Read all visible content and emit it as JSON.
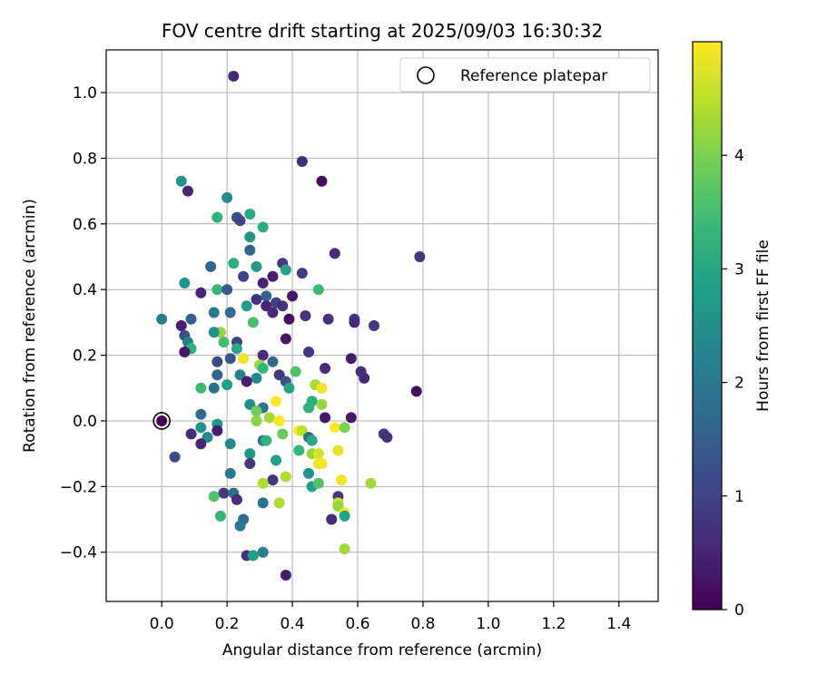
{
  "chart_data": {
    "type": "scatter",
    "title": "FOV centre drift starting at 2025/09/03 16:30:32",
    "xlabel": "Angular distance from reference (arcmin)",
    "ylabel": "Rotation from reference (arcmin)",
    "xlim": [
      -0.17,
      1.52
    ],
    "ylim": [
      -0.55,
      1.13
    ],
    "grid": true,
    "xticks": [
      0.0,
      0.2,
      0.4,
      0.6,
      0.8,
      1.0,
      1.2,
      1.4
    ],
    "xtick_labels": [
      "0.0",
      "0.2",
      "0.4",
      "0.6",
      "0.8",
      "1.0",
      "1.2",
      "1.4"
    ],
    "yticks": [
      -0.4,
      -0.2,
      0.0,
      0.2,
      0.4,
      0.6,
      0.8,
      1.0
    ],
    "ytick_labels": [
      "−0.4",
      "−0.2",
      "0.0",
      "0.2",
      "0.4",
      "0.6",
      "0.8",
      "1.0"
    ],
    "legend": {
      "position": "top-right",
      "entries": [
        "Reference platepar"
      ]
    },
    "reference_point": {
      "x": 0.0,
      "y": 0.0
    },
    "colorbar": {
      "label": "Hours from first FF file",
      "range": [
        0,
        5
      ],
      "ticks": [
        0,
        1,
        2,
        3,
        4
      ],
      "tick_labels": [
        "0",
        "1",
        "2",
        "3",
        "4"
      ],
      "colormap": [
        "#440154",
        "#482878",
        "#3e4989",
        "#31688e",
        "#26828e",
        "#1f9e89",
        "#35b779",
        "#6ece58",
        "#b5de2b",
        "#fde725"
      ]
    },
    "points": [
      {
        "x": 0.22,
        "y": 1.05,
        "h": 0.6
      },
      {
        "x": 0.43,
        "y": 0.79,
        "h": 0.7
      },
      {
        "x": 0.49,
        "y": 0.73,
        "h": 0.1
      },
      {
        "x": 0.06,
        "y": 0.73,
        "h": 2.6
      },
      {
        "x": 0.08,
        "y": 0.7,
        "h": 0.5
      },
      {
        "x": 0.2,
        "y": 0.68,
        "h": 2.4
      },
      {
        "x": 0.27,
        "y": 0.63,
        "h": 3.0
      },
      {
        "x": 0.23,
        "y": 0.62,
        "h": 1.2
      },
      {
        "x": 0.17,
        "y": 0.62,
        "h": 3.2
      },
      {
        "x": 0.31,
        "y": 0.59,
        "h": 3.1
      },
      {
        "x": 0.24,
        "y": 0.61,
        "h": 1.0
      },
      {
        "x": 0.27,
        "y": 0.56,
        "h": 2.6
      },
      {
        "x": 0.27,
        "y": 0.52,
        "h": 1.6
      },
      {
        "x": 0.53,
        "y": 0.51,
        "h": 0.6
      },
      {
        "x": 0.79,
        "y": 0.5,
        "h": 0.8
      },
      {
        "x": 0.37,
        "y": 0.48,
        "h": 0.8
      },
      {
        "x": 0.15,
        "y": 0.47,
        "h": 1.6
      },
      {
        "x": 0.22,
        "y": 0.48,
        "h": 3.2
      },
      {
        "x": 0.29,
        "y": 0.47,
        "h": 2.7
      },
      {
        "x": 0.38,
        "y": 0.46,
        "h": 2.9
      },
      {
        "x": 0.43,
        "y": 0.45,
        "h": 0.9
      },
      {
        "x": 0.25,
        "y": 0.44,
        "h": 1.0
      },
      {
        "x": 0.34,
        "y": 0.44,
        "h": 0.4
      },
      {
        "x": 0.07,
        "y": 0.42,
        "h": 2.6
      },
      {
        "x": 0.17,
        "y": 0.4,
        "h": 3.3
      },
      {
        "x": 0.2,
        "y": 0.4,
        "h": 1.4
      },
      {
        "x": 0.31,
        "y": 0.42,
        "h": 0.5
      },
      {
        "x": 0.48,
        "y": 0.4,
        "h": 3.4
      },
      {
        "x": 0.12,
        "y": 0.39,
        "h": 0.5
      },
      {
        "x": 0.4,
        "y": 0.38,
        "h": 0.3
      },
      {
        "x": 0.29,
        "y": 0.37,
        "h": 0.7
      },
      {
        "x": 0.32,
        "y": 0.38,
        "h": 1.5
      },
      {
        "x": 0.35,
        "y": 0.36,
        "h": 1.0
      },
      {
        "x": 0.32,
        "y": 0.35,
        "h": 0.5
      },
      {
        "x": 0.26,
        "y": 0.35,
        "h": 2.7
      },
      {
        "x": 0.34,
        "y": 0.33,
        "h": 0.6
      },
      {
        "x": 0.37,
        "y": 0.35,
        "h": 0.7
      },
      {
        "x": 0.16,
        "y": 0.33,
        "h": 2.0
      },
      {
        "x": 0.21,
        "y": 0.33,
        "h": 1.7
      },
      {
        "x": 0.0,
        "y": 0.31,
        "h": 2.2
      },
      {
        "x": 0.09,
        "y": 0.31,
        "h": 1.5
      },
      {
        "x": 0.44,
        "y": 0.32,
        "h": 0.7
      },
      {
        "x": 0.51,
        "y": 0.31,
        "h": 0.7
      },
      {
        "x": 0.59,
        "y": 0.31,
        "h": 0.9
      },
      {
        "x": 0.59,
        "y": 0.3,
        "h": 0.6
      },
      {
        "x": 0.28,
        "y": 0.3,
        "h": 3.5
      },
      {
        "x": 0.39,
        "y": 0.31,
        "h": 0.2
      },
      {
        "x": 0.65,
        "y": 0.29,
        "h": 0.8
      },
      {
        "x": 0.06,
        "y": 0.29,
        "h": 0.4
      },
      {
        "x": 0.18,
        "y": 0.27,
        "h": 4.2
      },
      {
        "x": 0.16,
        "y": 0.27,
        "h": 2.5
      },
      {
        "x": 0.07,
        "y": 0.26,
        "h": 1.2
      },
      {
        "x": 0.08,
        "y": 0.24,
        "h": 2.2
      },
      {
        "x": 0.19,
        "y": 0.24,
        "h": 3.5
      },
      {
        "x": 0.23,
        "y": 0.24,
        "h": 1.0
      },
      {
        "x": 0.38,
        "y": 0.25,
        "h": 0.3
      },
      {
        "x": 0.09,
        "y": 0.22,
        "h": 3.2
      },
      {
        "x": 0.23,
        "y": 0.22,
        "h": 3.0
      },
      {
        "x": 0.07,
        "y": 0.21,
        "h": 0.3
      },
      {
        "x": 0.45,
        "y": 0.21,
        "h": 0.8
      },
      {
        "x": 0.21,
        "y": 0.19,
        "h": 1.3
      },
      {
        "x": 0.31,
        "y": 0.2,
        "h": 0.6
      },
      {
        "x": 0.58,
        "y": 0.19,
        "h": 0.4
      },
      {
        "x": 0.17,
        "y": 0.18,
        "h": 1.1
      },
      {
        "x": 0.25,
        "y": 0.19,
        "h": 4.9
      },
      {
        "x": 0.34,
        "y": 0.18,
        "h": 1.6
      },
      {
        "x": 0.3,
        "y": 0.17,
        "h": 4.2
      },
      {
        "x": 0.31,
        "y": 0.16,
        "h": 3.3
      },
      {
        "x": 0.5,
        "y": 0.16,
        "h": 0.6
      },
      {
        "x": 0.61,
        "y": 0.15,
        "h": 0.7
      },
      {
        "x": 0.17,
        "y": 0.14,
        "h": 1.6
      },
      {
        "x": 0.24,
        "y": 0.14,
        "h": 2.2
      },
      {
        "x": 0.36,
        "y": 0.14,
        "h": 0.8
      },
      {
        "x": 0.41,
        "y": 0.15,
        "h": 3.6
      },
      {
        "x": 0.62,
        "y": 0.13,
        "h": 0.6
      },
      {
        "x": 0.29,
        "y": 0.13,
        "h": 2.4
      },
      {
        "x": 0.26,
        "y": 0.12,
        "h": 0.4
      },
      {
        "x": 0.2,
        "y": 0.11,
        "h": 2.8
      },
      {
        "x": 0.38,
        "y": 0.12,
        "h": 1.3
      },
      {
        "x": 0.12,
        "y": 0.1,
        "h": 3.4
      },
      {
        "x": 0.16,
        "y": 0.1,
        "h": 1.9
      },
      {
        "x": 0.39,
        "y": 0.1,
        "h": 2.9
      },
      {
        "x": 0.47,
        "y": 0.11,
        "h": 4.3
      },
      {
        "x": 0.49,
        "y": 0.1,
        "h": 4.9
      },
      {
        "x": 0.78,
        "y": 0.09,
        "h": 0.2
      },
      {
        "x": 0.35,
        "y": 0.06,
        "h": 5.0
      },
      {
        "x": 0.46,
        "y": 0.06,
        "h": 3.1
      },
      {
        "x": 0.49,
        "y": 0.05,
        "h": 4.2
      },
      {
        "x": 0.27,
        "y": 0.05,
        "h": 2.4
      },
      {
        "x": 0.31,
        "y": 0.04,
        "h": 1.9
      },
      {
        "x": 0.29,
        "y": 0.03,
        "h": 3.9
      },
      {
        "x": 0.45,
        "y": 0.04,
        "h": 3.2
      },
      {
        "x": 0.12,
        "y": 0.02,
        "h": 1.7
      },
      {
        "x": 0.29,
        "y": 0.0,
        "h": 4.1
      },
      {
        "x": 0.33,
        "y": 0.01,
        "h": 4.3
      },
      {
        "x": 0.36,
        "y": 0.0,
        "h": 5.0
      },
      {
        "x": 0.5,
        "y": 0.01,
        "h": 0.3
      },
      {
        "x": 0.58,
        "y": 0.01,
        "h": 0.3
      },
      {
        "x": 0.17,
        "y": -0.01,
        "h": 2.6
      },
      {
        "x": 0.53,
        "y": -0.02,
        "h": 5.0
      },
      {
        "x": 0.56,
        "y": -0.02,
        "h": 4.0
      },
      {
        "x": 0.12,
        "y": -0.02,
        "h": 2.5
      },
      {
        "x": 0.42,
        "y": -0.03,
        "h": 5.0
      },
      {
        "x": 0.43,
        "y": -0.03,
        "h": 4.5
      },
      {
        "x": 0.68,
        "y": -0.04,
        "h": 0.8
      },
      {
        "x": 0.09,
        "y": -0.04,
        "h": 0.6
      },
      {
        "x": 0.37,
        "y": -0.04,
        "h": 3.8
      },
      {
        "x": 0.17,
        "y": -0.03,
        "h": 0.4
      },
      {
        "x": 0.45,
        "y": -0.05,
        "h": 1.9
      },
      {
        "x": 0.14,
        "y": -0.05,
        "h": 2.4
      },
      {
        "x": 0.46,
        "y": -0.06,
        "h": 3.0
      },
      {
        "x": 0.69,
        "y": -0.05,
        "h": 0.7
      },
      {
        "x": 0.31,
        "y": -0.06,
        "h": 2.0
      },
      {
        "x": 0.32,
        "y": -0.06,
        "h": 3.2
      },
      {
        "x": 0.12,
        "y": -0.07,
        "h": 0.5
      },
      {
        "x": 0.21,
        "y": -0.07,
        "h": 2.4
      },
      {
        "x": 0.42,
        "y": -0.09,
        "h": 3.3
      },
      {
        "x": 0.46,
        "y": -0.1,
        "h": 4.2
      },
      {
        "x": 0.48,
        "y": -0.1,
        "h": 4.7
      },
      {
        "x": 0.54,
        "y": -0.09,
        "h": 4.8
      },
      {
        "x": 0.04,
        "y": -0.11,
        "h": 1.1
      },
      {
        "x": 0.27,
        "y": -0.1,
        "h": 2.6
      },
      {
        "x": 0.48,
        "y": -0.13,
        "h": 4.9
      },
      {
        "x": 0.49,
        "y": -0.13,
        "h": 4.9
      },
      {
        "x": 0.35,
        "y": -0.12,
        "h": 2.8
      },
      {
        "x": 0.27,
        "y": -0.13,
        "h": 0.8
      },
      {
        "x": 0.21,
        "y": -0.16,
        "h": 2.0
      },
      {
        "x": 0.45,
        "y": -0.16,
        "h": 2.6
      },
      {
        "x": 0.38,
        "y": -0.17,
        "h": 4.4
      },
      {
        "x": 0.34,
        "y": -0.18,
        "h": 0.8
      },
      {
        "x": 0.31,
        "y": -0.19,
        "h": 4.4
      },
      {
        "x": 0.55,
        "y": -0.18,
        "h": 4.9
      },
      {
        "x": 0.46,
        "y": -0.2,
        "h": 2.8
      },
      {
        "x": 0.48,
        "y": -0.19,
        "h": 3.6
      },
      {
        "x": 0.64,
        "y": -0.19,
        "h": 4.3
      },
      {
        "x": 0.19,
        "y": -0.22,
        "h": 0.8
      },
      {
        "x": 0.22,
        "y": -0.22,
        "h": 1.8
      },
      {
        "x": 0.16,
        "y": -0.23,
        "h": 3.6
      },
      {
        "x": 0.54,
        "y": -0.23,
        "h": 0.8
      },
      {
        "x": 0.23,
        "y": -0.24,
        "h": 0.6
      },
      {
        "x": 0.36,
        "y": -0.25,
        "h": 4.4
      },
      {
        "x": 0.31,
        "y": -0.25,
        "h": 1.9
      },
      {
        "x": 0.54,
        "y": -0.25,
        "h": 4.6
      },
      {
        "x": 0.54,
        "y": -0.26,
        "h": 4.2
      },
      {
        "x": 0.56,
        "y": -0.28,
        "h": 4.9
      },
      {
        "x": 0.18,
        "y": -0.29,
        "h": 3.3
      },
      {
        "x": 0.56,
        "y": -0.29,
        "h": 2.9
      },
      {
        "x": 0.52,
        "y": -0.3,
        "h": 0.6
      },
      {
        "x": 0.25,
        "y": -0.3,
        "h": 1.8
      },
      {
        "x": 0.24,
        "y": -0.32,
        "h": 2.0
      },
      {
        "x": 0.56,
        "y": -0.39,
        "h": 4.3
      },
      {
        "x": 0.31,
        "y": -0.4,
        "h": 2.2
      },
      {
        "x": 0.26,
        "y": -0.41,
        "h": 0.7
      },
      {
        "x": 0.28,
        "y": -0.41,
        "h": 2.8
      },
      {
        "x": 0.38,
        "y": -0.47,
        "h": 0.4
      }
    ]
  }
}
